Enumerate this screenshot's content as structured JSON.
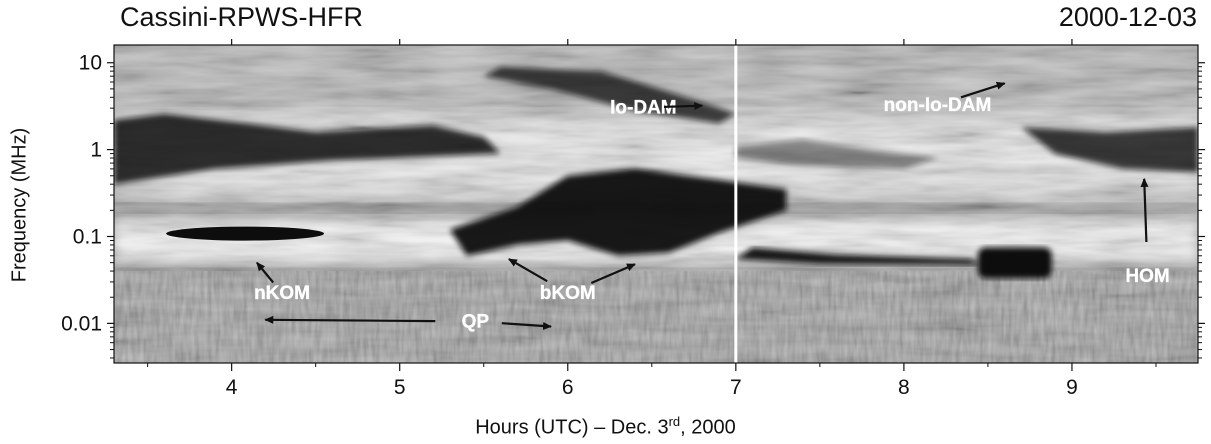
{
  "header": {
    "left_title": "Cassini-RPWS-HFR",
    "right_date": "2000-12-03"
  },
  "chart_data": {
    "type": "heatmap",
    "title": "Cassini-RPWS-HFR",
    "xlabel": "Hours (UTC) – Dec. 3rd, 2000",
    "ylabel": "Frequency (MHz)",
    "x_range": [
      3.3,
      9.75
    ],
    "y_range": [
      0.0035,
      16
    ],
    "y_scale": "log",
    "x_ticks": [
      4,
      5,
      6,
      7,
      8,
      9
    ],
    "x_tick_labels": [
      "4",
      "5",
      "6",
      "7",
      "8",
      "9"
    ],
    "y_ticks": [
      10,
      1,
      0.1,
      0.01
    ],
    "y_tick_labels": [
      "10",
      "1",
      "0.1",
      "0.01"
    ],
    "colormap": "grayscale (dark = intense emission)",
    "annotations": [
      {
        "label": "Io-DAM",
        "x": 6.45,
        "y": 2.6,
        "arrow_to": [
          6.8,
          3.2
        ]
      },
      {
        "label": "non-Io-DAM",
        "x": 8.2,
        "y": 2.8,
        "arrow_to": [
          8.6,
          5.8
        ]
      },
      {
        "label": "nKOM",
        "x": 4.3,
        "y": 0.019,
        "arrow_to": [
          4.15,
          0.05
        ]
      },
      {
        "label": "bKOM",
        "x": 6.0,
        "y": 0.019,
        "arrow_to": [
          5.65,
          0.055
        ],
        "arrow_to_2": [
          6.4,
          0.048
        ]
      },
      {
        "label": "QP",
        "x": 5.45,
        "y": 0.009,
        "arrow_to": [
          4.2,
          0.011
        ],
        "arrow_to_2": [
          5.9,
          0.0092
        ]
      },
      {
        "label": "HOM",
        "x": 9.45,
        "y": 0.03,
        "arrow_to": [
          9.43,
          0.46
        ]
      }
    ],
    "vertical_lines": [
      7.0
    ]
  }
}
